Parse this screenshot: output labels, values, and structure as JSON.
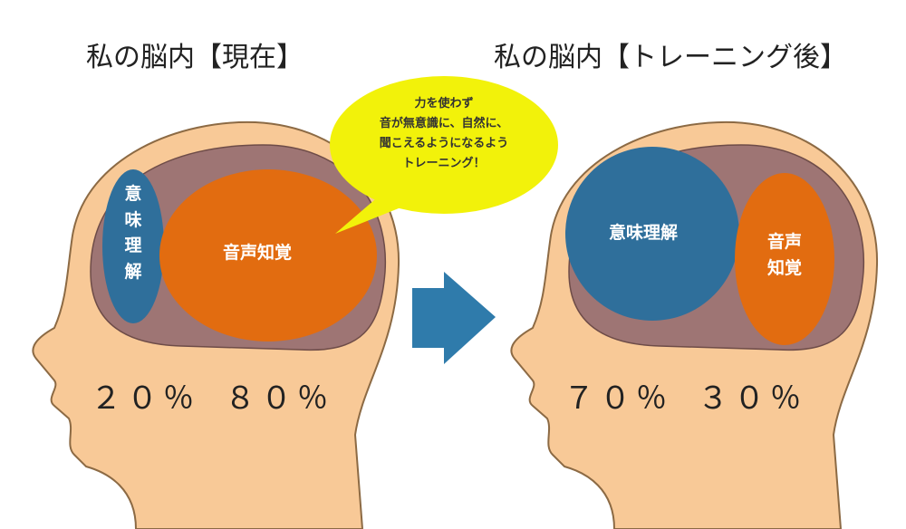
{
  "left": {
    "title": "私の脳内【現在】",
    "meaning": "意味理解",
    "sound": "音声知覚",
    "meaning_percent": "２０％",
    "sound_percent": "８０％"
  },
  "bubble": {
    "lines": [
      "力を使わず",
      "音が無意識に、自然に、",
      "聞こえるようになるよう",
      "トレーニング！"
    ]
  },
  "right": {
    "title": "私の脳内【トレーニング後】",
    "meaning": "意味理解",
    "sound": "音声知覚",
    "meaning_percent": "７０％",
    "sound_percent": "３０％"
  }
}
